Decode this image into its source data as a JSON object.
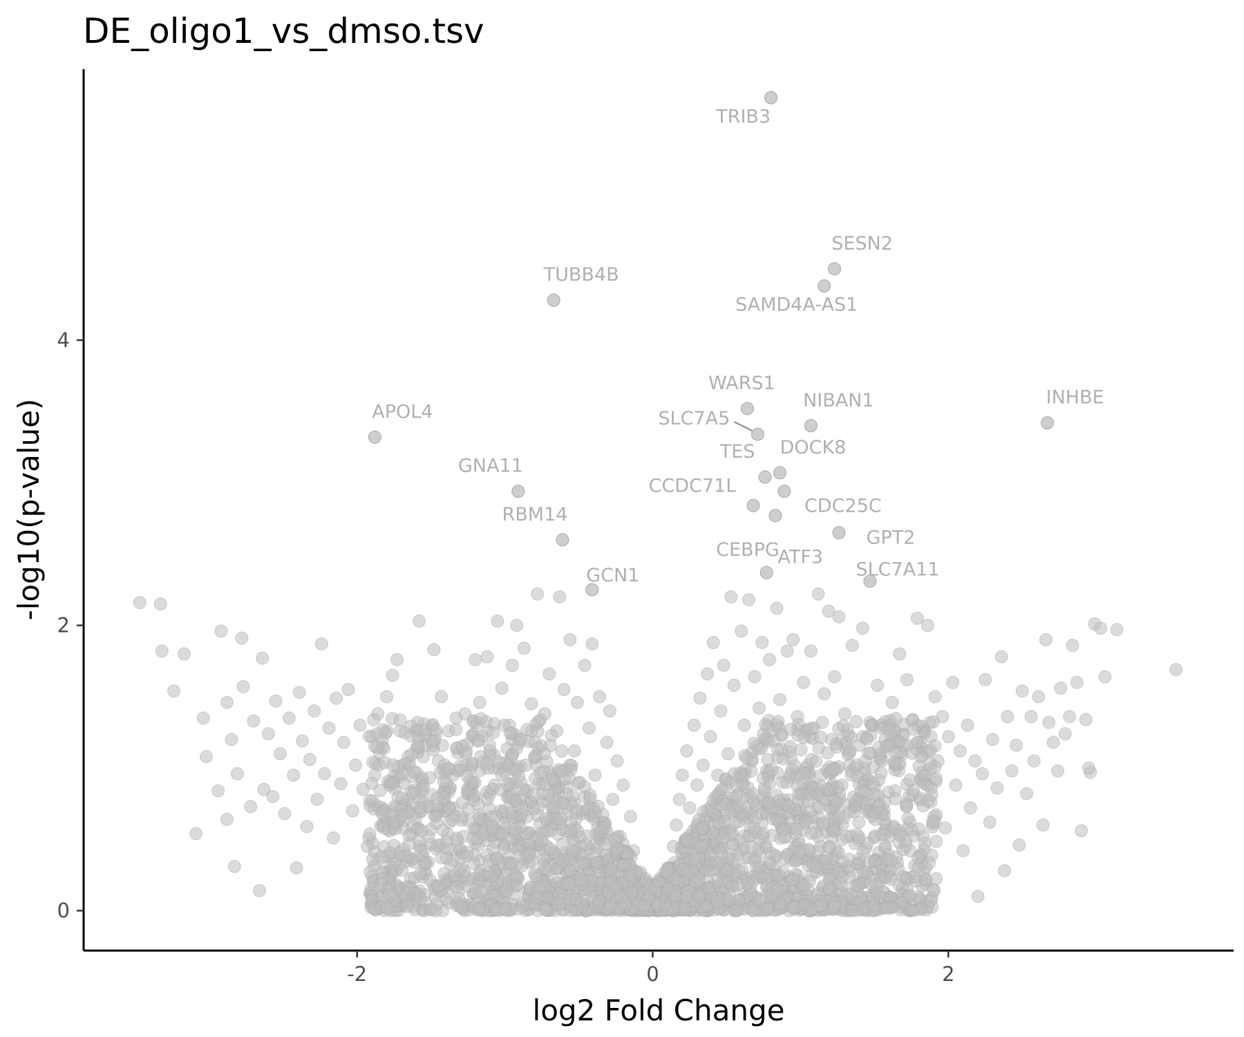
{
  "chart_data": {
    "type": "scatter",
    "title": "DE_oligo1_vs_dmso.tsv",
    "xlabel": "log2 Fold Change",
    "ylabel": "-log10(p-value)",
    "xlim": [
      -3.85,
      3.93
    ],
    "ylim": [
      -0.28,
      5.9
    ],
    "x_ticks": [
      -2,
      0,
      2
    ],
    "x_tick_labels": [
      "-2",
      "0",
      "2"
    ],
    "y_ticks": [
      0,
      2,
      4
    ],
    "y_tick_labels": [
      "0",
      "2",
      "4"
    ],
    "grid": false,
    "legend": "none",
    "point_color": "#bebebe",
    "label_color": "#b0b0b0",
    "labeled_points": [
      {
        "gene": "TRIB3",
        "x": 0.8,
        "y": 5.7
      },
      {
        "gene": "SESN2",
        "x": 1.23,
        "y": 4.5
      },
      {
        "gene": "SAMD4A-AS1",
        "x": 1.16,
        "y": 4.38
      },
      {
        "gene": "TUBB4B",
        "x": -0.67,
        "y": 4.28
      },
      {
        "gene": "WARS1",
        "x": 0.64,
        "y": 3.52
      },
      {
        "gene": "SLC7A5",
        "x": 0.71,
        "y": 3.34
      },
      {
        "gene": "NIBAN1",
        "x": 1.07,
        "y": 3.4
      },
      {
        "gene": "INHBE",
        "x": 2.67,
        "y": 3.42
      },
      {
        "gene": "APOL4",
        "x": -1.88,
        "y": 3.32
      },
      {
        "gene": "TES",
        "x": 0.76,
        "y": 3.04
      },
      {
        "gene": "DOCK8",
        "x": 0.86,
        "y": 3.07
      },
      {
        "gene": "GNA11",
        "x": -0.91,
        "y": 2.94
      },
      {
        "gene": "CDC25C",
        "x": 0.89,
        "y": 2.94
      },
      {
        "gene": "CCDC71L",
        "x": 0.68,
        "y": 2.84
      },
      {
        "gene": "GPT2",
        "x": 1.26,
        "y": 2.65
      },
      {
        "gene": "RBM14",
        "x": -0.61,
        "y": 2.6
      },
      {
        "gene": "CEBPG",
        "x": 0.83,
        "y": 2.77
      },
      {
        "gene": "GCN1",
        "x": -0.41,
        "y": 2.25
      },
      {
        "gene": "ATF3",
        "x": 0.77,
        "y": 2.37
      },
      {
        "gene": "SLC7A11",
        "x": 1.47,
        "y": 2.31
      }
    ],
    "background_points_note": "",
    "background_points": [
      [
        -3.47,
        2.16
      ],
      [
        -3.33,
        2.15
      ],
      [
        -3.32,
        1.82
      ],
      [
        -3.24,
        1.54
      ],
      [
        -3.17,
        1.8
      ],
      [
        -3.09,
        0.54
      ],
      [
        -3.04,
        1.35
      ],
      [
        -3.02,
        1.08
      ],
      [
        -2.94,
        0.84
      ],
      [
        -2.92,
        1.96
      ],
      [
        -2.88,
        1.46
      ],
      [
        -2.88,
        0.64
      ],
      [
        -2.85,
        1.2
      ],
      [
        -2.83,
        0.31
      ],
      [
        -2.81,
        0.96
      ],
      [
        -2.78,
        1.91
      ],
      [
        -2.77,
        1.57
      ],
      [
        -2.72,
        0.73
      ],
      [
        -2.7,
        1.33
      ],
      [
        -2.66,
        0.14
      ],
      [
        -2.64,
        1.77
      ],
      [
        -2.63,
        0.85
      ],
      [
        -2.6,
        1.24
      ],
      [
        -2.57,
        0.8
      ],
      [
        -2.55,
        1.47
      ],
      [
        -2.52,
        1.1
      ],
      [
        -2.49,
        0.68
      ],
      [
        -2.46,
        1.35
      ],
      [
        -2.43,
        0.95
      ],
      [
        -2.41,
        0.3
      ],
      [
        -2.39,
        1.53
      ],
      [
        -2.37,
        1.19
      ],
      [
        -2.34,
        0.59
      ],
      [
        -2.32,
        1.06
      ],
      [
        -2.29,
        1.4
      ],
      [
        -2.27,
        0.78
      ],
      [
        -2.24,
        1.87
      ],
      [
        -2.22,
        0.96
      ],
      [
        -2.19,
        1.28
      ],
      [
        -2.16,
        0.51
      ],
      [
        -2.14,
        1.49
      ],
      [
        -2.11,
        0.89
      ],
      [
        -2.09,
        1.18
      ],
      [
        -2.06,
        1.55
      ],
      [
        -2.03,
        0.7
      ],
      [
        -2.01,
        1.02
      ],
      [
        -1.98,
        1.3
      ],
      [
        -1.96,
        0.85
      ],
      [
        -1.93,
        0.45
      ],
      [
        -1.9,
        1.22
      ],
      [
        -1.88,
        0.95
      ],
      [
        -1.86,
        1.38
      ],
      [
        -1.83,
        0.6
      ],
      [
        -1.8,
        1.5
      ],
      [
        -1.78,
        0.88
      ],
      [
        -1.76,
        1.65
      ],
      [
        -1.73,
        1.76
      ],
      [
        -1.71,
        1.26
      ],
      [
        -1.68,
        0.75
      ],
      [
        -1.65,
        1.02
      ],
      [
        -1.63,
        0.36
      ],
      [
        -1.6,
        1.26
      ],
      [
        -1.58,
        2.03
      ],
      [
        -1.56,
        0.92
      ],
      [
        -1.53,
        1.16
      ],
      [
        -1.5,
        0.57
      ],
      [
        -1.48,
        1.83
      ],
      [
        -1.45,
        1.05
      ],
      [
        -1.43,
        1.5
      ],
      [
        -1.4,
        0.7
      ],
      [
        -1.38,
        1.26
      ],
      [
        -1.35,
        0.95
      ],
      [
        -1.32,
        1.14
      ],
      [
        -1.3,
        0.42
      ],
      [
        -1.27,
        1.38
      ],
      [
        -1.24,
        0.82
      ],
      [
        -1.22,
        1.03
      ],
      [
        -1.2,
        1.76
      ],
      [
        -1.17,
        1.46
      ],
      [
        -1.15,
        0.64
      ],
      [
        -1.12,
        1.78
      ],
      [
        -1.1,
        1.09
      ],
      [
        -1.07,
        0.88
      ],
      [
        -1.05,
        2.03
      ],
      [
        -1.02,
        1.56
      ],
      [
        -1.0,
        0.97
      ],
      [
        -0.97,
        1.3
      ],
      [
        -0.95,
        1.72
      ],
      [
        -0.92,
        2.0
      ],
      [
        -0.9,
        1.2
      ],
      [
        -0.87,
        1.84
      ],
      [
        -0.85,
        0.75
      ],
      [
        -0.82,
        1.45
      ],
      [
        -0.8,
        1.07
      ],
      [
        -0.78,
        2.22
      ],
      [
        -0.75,
        0.55
      ],
      [
        -0.73,
        1.38
      ],
      [
        -0.7,
        1.66
      ],
      [
        -0.68,
        0.95
      ],
      [
        -0.65,
        1.26
      ],
      [
        -0.63,
        2.2
      ],
      [
        -0.6,
        1.55
      ],
      [
        -0.58,
        0.82
      ],
      [
        -0.56,
        1.9
      ],
      [
        -0.53,
        1.12
      ],
      [
        -0.51,
        1.46
      ],
      [
        -0.48,
        0.68
      ],
      [
        -0.46,
        1.72
      ],
      [
        -0.43,
        1.28
      ],
      [
        -0.41,
        1.87
      ],
      [
        -0.39,
        0.95
      ],
      [
        -0.36,
        1.5
      ],
      [
        -0.34,
        0.62
      ],
      [
        -0.31,
        1.18
      ],
      [
        -0.29,
        1.4
      ],
      [
        -0.27,
        0.78
      ],
      [
        -0.24,
        1.05
      ],
      [
        -0.22,
        0.52
      ],
      [
        -0.2,
        0.88
      ],
      [
        -0.18,
        0.35
      ],
      [
        -0.15,
        0.66
      ],
      [
        -0.13,
        0.42
      ],
      [
        -0.11,
        0.25
      ],
      [
        -0.09,
        0.15
      ],
      [
        -0.06,
        0.08
      ],
      [
        -0.04,
        0.04
      ],
      [
        -0.02,
        0.02
      ],
      [
        0.02,
        0.03
      ],
      [
        0.04,
        0.06
      ],
      [
        0.07,
        0.12
      ],
      [
        0.09,
        0.2
      ],
      [
        0.11,
        0.3
      ],
      [
        0.14,
        0.45
      ],
      [
        0.16,
        0.6
      ],
      [
        0.18,
        0.78
      ],
      [
        0.2,
        0.95
      ],
      [
        0.23,
        1.12
      ],
      [
        0.25,
        0.72
      ],
      [
        0.28,
        1.3
      ],
      [
        0.3,
        0.88
      ],
      [
        0.32,
        1.49
      ],
      [
        0.34,
        1.02
      ],
      [
        0.37,
        1.66
      ],
      [
        0.39,
        1.22
      ],
      [
        0.41,
        1.88
      ],
      [
        0.44,
        0.95
      ],
      [
        0.46,
        1.4
      ],
      [
        0.48,
        1.72
      ],
      [
        0.51,
        1.1
      ],
      [
        0.53,
        2.2
      ],
      [
        0.55,
        1.58
      ],
      [
        0.58,
        0.82
      ],
      [
        0.6,
        1.96
      ],
      [
        0.62,
        1.3
      ],
      [
        0.65,
        2.18
      ],
      [
        0.67,
        1.05
      ],
      [
        0.69,
        1.64
      ],
      [
        0.72,
        1.42
      ],
      [
        0.74,
        1.88
      ],
      [
        0.77,
        0.98
      ],
      [
        0.79,
        1.76
      ],
      [
        0.81,
        1.26
      ],
      [
        0.84,
        2.12
      ],
      [
        0.86,
        1.48
      ],
      [
        0.88,
        0.9
      ],
      [
        0.91,
        1.82
      ],
      [
        0.93,
        1.15
      ],
      [
        0.95,
        1.9
      ],
      [
        0.98,
        1.36
      ],
      [
        1.0,
        0.82
      ],
      [
        1.02,
        1.6
      ],
      [
        1.05,
        1.02
      ],
      [
        1.07,
        1.82
      ],
      [
        1.09,
        1.28
      ],
      [
        1.12,
        2.22
      ],
      [
        1.14,
        0.95
      ],
      [
        1.16,
        1.52
      ],
      [
        1.19,
        2.1
      ],
      [
        1.21,
        1.2
      ],
      [
        1.23,
        1.64
      ],
      [
        1.26,
        2.06
      ],
      [
        1.28,
        0.88
      ],
      [
        1.3,
        1.38
      ],
      [
        1.33,
        1.02
      ],
      [
        1.35,
        1.86
      ],
      [
        1.38,
        0.74
      ],
      [
        1.4,
        1.16
      ],
      [
        1.42,
        1.98
      ],
      [
        1.45,
        0.92
      ],
      [
        1.47,
        1.32
      ],
      [
        1.5,
        0.68
      ],
      [
        1.52,
        1.58
      ],
      [
        1.55,
        1.05
      ],
      [
        1.57,
        1.2
      ],
      [
        1.6,
        0.52
      ],
      [
        1.62,
        1.46
      ],
      [
        1.64,
        0.84
      ],
      [
        1.67,
        1.8
      ],
      [
        1.69,
        1.1
      ],
      [
        1.72,
        1.62
      ],
      [
        1.74,
        0.62
      ],
      [
        1.76,
        1.34
      ],
      [
        1.79,
        2.05
      ],
      [
        1.81,
        0.92
      ],
      [
        1.84,
        1.26
      ],
      [
        1.86,
        2.0
      ],
      [
        1.88,
        0.76
      ],
      [
        1.91,
        1.5
      ],
      [
        1.93,
        1.05
      ],
      [
        1.96,
        1.36
      ],
      [
        1.98,
        0.58
      ],
      [
        2.0,
        1.22
      ],
      [
        2.03,
        1.6
      ],
      [
        2.05,
        0.88
      ],
      [
        2.08,
        1.12
      ],
      [
        2.1,
        0.42
      ],
      [
        2.13,
        1.3
      ],
      [
        2.15,
        0.72
      ],
      [
        2.18,
        1.05
      ],
      [
        2.2,
        0.1
      ],
      [
        2.23,
        0.96
      ],
      [
        2.25,
        1.62
      ],
      [
        2.28,
        0.62
      ],
      [
        2.3,
        1.2
      ],
      [
        2.33,
        0.86
      ],
      [
        2.36,
        1.78
      ],
      [
        2.38,
        0.28
      ],
      [
        2.4,
        1.36
      ],
      [
        2.43,
        0.98
      ],
      [
        2.46,
        1.16
      ],
      [
        2.48,
        0.46
      ],
      [
        2.5,
        1.54
      ],
      [
        2.53,
        0.82
      ],
      [
        2.56,
        1.36
      ],
      [
        2.58,
        1.05
      ],
      [
        2.61,
        1.5
      ],
      [
        2.64,
        0.6
      ],
      [
        2.66,
        1.9
      ],
      [
        2.68,
        1.32
      ],
      [
        2.71,
        1.18
      ],
      [
        2.74,
        0.98
      ],
      [
        2.76,
        1.56
      ],
      [
        2.79,
        1.24
      ],
      [
        2.82,
        1.36
      ],
      [
        2.84,
        1.86
      ],
      [
        2.87,
        1.6
      ],
      [
        2.9,
        0.56
      ],
      [
        2.93,
        1.34
      ],
      [
        2.96,
        0.97
      ],
      [
        2.99,
        2.01
      ],
      [
        3.03,
        1.98
      ],
      [
        3.14,
        1.97
      ],
      [
        3.06,
        1.64
      ],
      [
        3.54,
        1.69
      ],
      [
        2.95,
        1.0
      ]
    ]
  }
}
